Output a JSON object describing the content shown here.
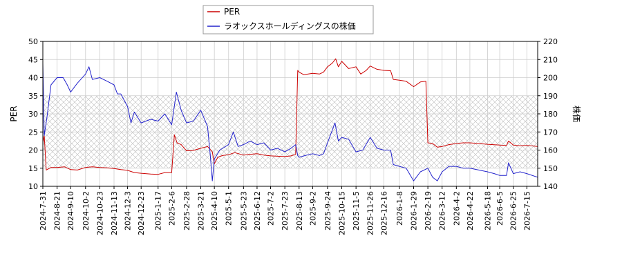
{
  "chart_data": {
    "type": "line",
    "title": "",
    "xlabel": "",
    "ylabel_left": "PER",
    "ylabel_right": "株価",
    "ylim_left": [
      10,
      50
    ],
    "ylim_right": [
      140,
      220
    ],
    "yticks_left": [
      "10",
      "15",
      "20",
      "25",
      "30",
      "35",
      "40",
      "45",
      "50"
    ],
    "yticks_right": [
      "140",
      "150",
      "160",
      "170",
      "180",
      "190",
      "200",
      "210",
      "220"
    ],
    "x_range": [
      "2024-07-31",
      "2026-07-31"
    ],
    "x_tick_labels": [
      "2024-7-31",
      "2024-8-21",
      "2024-9-10",
      "2024-10-2",
      "2024-10-23",
      "2024-11-13",
      "2024-12-3",
      "2024-12-23",
      "2025-1-17",
      "2025-2-6",
      "2025-2-28",
      "2025-3-21",
      "2025-4-10",
      "2025-5-1",
      "2025-5-23",
      "2025-6-12",
      "2025-7-2",
      "2025-7-23",
      "2025-8-13",
      "2025-9-2",
      "2025-9-24",
      "2025-10-15",
      "2025-11-5",
      "2025-11-26",
      "2025-12-16",
      "2026-1-8",
      "2026-1-29",
      "2026-2-19",
      "2026-3-12",
      "2026-4-2",
      "2026-4-22",
      "2026-5-18",
      "2026-6-5",
      "2026-6-25",
      "2026-7-15"
    ],
    "grid": true,
    "legend_position": "top-center",
    "shaded_band_left": [
      15,
      35
    ],
    "series": [
      {
        "name": "PER",
        "axis": "left",
        "color": "#cc0000",
        "points": [
          [
            "2024-07-31",
            22.0
          ],
          [
            "2024-08-02",
            24.0
          ],
          [
            "2024-08-05",
            14.5
          ],
          [
            "2024-08-12",
            15.2
          ],
          [
            "2024-08-21",
            15.2
          ],
          [
            "2024-09-01",
            15.4
          ],
          [
            "2024-09-10",
            14.6
          ],
          [
            "2024-09-20",
            14.5
          ],
          [
            "2024-10-02",
            15.2
          ],
          [
            "2024-10-12",
            15.4
          ],
          [
            "2024-10-23",
            15.2
          ],
          [
            "2024-11-03",
            15.1
          ],
          [
            "2024-11-13",
            14.9
          ],
          [
            "2024-11-23",
            14.6
          ],
          [
            "2024-12-03",
            14.4
          ],
          [
            "2024-12-13",
            13.8
          ],
          [
            "2024-12-23",
            13.6
          ],
          [
            "2025-01-06",
            13.4
          ],
          [
            "2025-01-17",
            13.3
          ],
          [
            "2025-01-27",
            13.8
          ],
          [
            "2025-02-06",
            13.8
          ],
          [
            "2025-02-10",
            24.2
          ],
          [
            "2025-02-14",
            22.0
          ],
          [
            "2025-02-20",
            21.5
          ],
          [
            "2025-02-28",
            19.8
          ],
          [
            "2025-03-10",
            19.9
          ],
          [
            "2025-03-21",
            20.5
          ],
          [
            "2025-03-31",
            21.0
          ],
          [
            "2025-04-07",
            19.5
          ],
          [
            "2025-04-10",
            16.2
          ],
          [
            "2025-04-15",
            18.0
          ],
          [
            "2025-04-22",
            18.5
          ],
          [
            "2025-05-01",
            18.7
          ],
          [
            "2025-05-10",
            19.3
          ],
          [
            "2025-05-23",
            18.6
          ],
          [
            "2025-06-01",
            18.8
          ],
          [
            "2025-06-12",
            19.0
          ],
          [
            "2025-06-22",
            18.6
          ],
          [
            "2025-07-02",
            18.4
          ],
          [
            "2025-07-12",
            18.3
          ],
          [
            "2025-07-23",
            18.2
          ],
          [
            "2025-08-01",
            18.4
          ],
          [
            "2025-08-08",
            18.8
          ],
          [
            "2025-08-11",
            42.0
          ],
          [
            "2025-08-13",
            41.5
          ],
          [
            "2025-08-20",
            40.8
          ],
          [
            "2025-09-02",
            41.2
          ],
          [
            "2025-09-12",
            41.0
          ],
          [
            "2025-09-18",
            41.5
          ],
          [
            "2025-09-24",
            43.0
          ],
          [
            "2025-10-01",
            44.0
          ],
          [
            "2025-10-06",
            45.2
          ],
          [
            "2025-10-10",
            43.0
          ],
          [
            "2025-10-15",
            44.5
          ],
          [
            "2025-10-25",
            42.5
          ],
          [
            "2025-11-05",
            43.0
          ],
          [
            "2025-11-12",
            41.0
          ],
          [
            "2025-11-20",
            42.0
          ],
          [
            "2025-11-26",
            43.2
          ],
          [
            "2025-12-06",
            42.3
          ],
          [
            "2025-12-16",
            42.0
          ],
          [
            "2025-12-26",
            41.9
          ],
          [
            "2025-12-30",
            39.5
          ],
          [
            "2026-01-08",
            39.3
          ],
          [
            "2026-01-18",
            39.0
          ],
          [
            "2026-01-29",
            37.5
          ],
          [
            "2026-02-08",
            38.8
          ],
          [
            "2026-02-16",
            39.0
          ],
          [
            "2026-02-19",
            22.0
          ],
          [
            "2026-02-26",
            21.8
          ],
          [
            "2026-03-05",
            20.8
          ],
          [
            "2026-03-12",
            21.0
          ],
          [
            "2026-03-22",
            21.5
          ],
          [
            "2026-04-02",
            21.8
          ],
          [
            "2026-04-12",
            22.0
          ],
          [
            "2026-04-22",
            22.0
          ],
          [
            "2026-05-05",
            21.8
          ],
          [
            "2026-05-18",
            21.6
          ],
          [
            "2026-06-05",
            21.4
          ],
          [
            "2026-06-15",
            21.3
          ],
          [
            "2026-06-18",
            22.5
          ],
          [
            "2026-06-25",
            21.4
          ],
          [
            "2026-07-05",
            21.2
          ],
          [
            "2026-07-15",
            21.3
          ],
          [
            "2026-07-31",
            21.0
          ]
        ]
      },
      {
        "name": "ラオックスホールディングスの株価",
        "axis": "right",
        "color": "#2222cc",
        "points": [
          [
            "2024-07-31",
            208.0
          ],
          [
            "2024-08-02",
            168.0
          ],
          [
            "2024-08-06",
            178.0
          ],
          [
            "2024-08-12",
            196.0
          ],
          [
            "2024-08-21",
            200.0
          ],
          [
            "2024-08-30",
            200.0
          ],
          [
            "2024-09-05",
            196.0
          ],
          [
            "2024-09-10",
            192.0
          ],
          [
            "2024-09-20",
            197.0
          ],
          [
            "2024-10-02",
            202.0
          ],
          [
            "2024-10-07",
            206.0
          ],
          [
            "2024-10-12",
            199.0
          ],
          [
            "2024-10-23",
            200.0
          ],
          [
            "2024-11-03",
            198.0
          ],
          [
            "2024-11-13",
            196.0
          ],
          [
            "2024-11-18",
            191.0
          ],
          [
            "2024-11-23",
            191.0
          ],
          [
            "2024-12-03",
            184.0
          ],
          [
            "2024-12-08",
            175.0
          ],
          [
            "2024-12-13",
            181.0
          ],
          [
            "2024-12-23",
            175.0
          ],
          [
            "2025-01-06",
            177.0
          ],
          [
            "2025-01-17",
            176.0
          ],
          [
            "2025-01-27",
            180.0
          ],
          [
            "2025-02-06",
            174.0
          ],
          [
            "2025-02-13",
            192.0
          ],
          [
            "2025-02-20",
            182.0
          ],
          [
            "2025-02-28",
            175.0
          ],
          [
            "2025-03-10",
            176.0
          ],
          [
            "2025-03-21",
            182.0
          ],
          [
            "2025-03-31",
            173.0
          ],
          [
            "2025-04-04",
            157.0
          ],
          [
            "2025-04-07",
            143.0
          ],
          [
            "2025-04-10",
            155.0
          ],
          [
            "2025-04-18",
            160.0
          ],
          [
            "2025-05-01",
            163.0
          ],
          [
            "2025-05-08",
            170.0
          ],
          [
            "2025-05-15",
            162.0
          ],
          [
            "2025-05-23",
            163.0
          ],
          [
            "2025-06-02",
            165.0
          ],
          [
            "2025-06-12",
            163.0
          ],
          [
            "2025-06-22",
            164.0
          ],
          [
            "2025-07-02",
            160.0
          ],
          [
            "2025-07-12",
            161.0
          ],
          [
            "2025-07-23",
            159.0
          ],
          [
            "2025-08-01",
            161.0
          ],
          [
            "2025-08-08",
            163.0
          ],
          [
            "2025-08-11",
            157.0
          ],
          [
            "2025-08-13",
            156.0
          ],
          [
            "2025-08-22",
            157.0
          ],
          [
            "2025-09-02",
            158.0
          ],
          [
            "2025-09-12",
            157.0
          ],
          [
            "2025-09-18",
            158.0
          ],
          [
            "2025-09-24",
            164.0
          ],
          [
            "2025-10-01",
            171.0
          ],
          [
            "2025-10-05",
            175.0
          ],
          [
            "2025-10-10",
            165.0
          ],
          [
            "2025-10-15",
            167.0
          ],
          [
            "2025-10-25",
            166.0
          ],
          [
            "2025-11-05",
            159.0
          ],
          [
            "2025-11-15",
            160.0
          ],
          [
            "2025-11-26",
            167.0
          ],
          [
            "2025-12-06",
            161.0
          ],
          [
            "2025-12-16",
            160.0
          ],
          [
            "2025-12-26",
            160.0
          ],
          [
            "2025-12-30",
            152.0
          ],
          [
            "2026-01-08",
            151.0
          ],
          [
            "2026-01-18",
            150.0
          ],
          [
            "2026-01-29",
            143.0
          ],
          [
            "2026-02-08",
            148.0
          ],
          [
            "2026-02-19",
            150.0
          ],
          [
            "2026-02-26",
            145.0
          ],
          [
            "2026-03-05",
            143.0
          ],
          [
            "2026-03-12",
            148.0
          ],
          [
            "2026-03-22",
            151.0
          ],
          [
            "2026-04-02",
            151.0
          ],
          [
            "2026-04-12",
            150.0
          ],
          [
            "2026-04-22",
            150.0
          ],
          [
            "2026-05-05",
            149.0
          ],
          [
            "2026-05-18",
            148.0
          ],
          [
            "2026-05-28",
            147.0
          ],
          [
            "2026-06-05",
            146.0
          ],
          [
            "2026-06-15",
            146.0
          ],
          [
            "2026-06-18",
            153.0
          ],
          [
            "2026-06-25",
            147.0
          ],
          [
            "2026-07-05",
            148.0
          ],
          [
            "2026-07-15",
            147.0
          ],
          [
            "2026-07-31",
            145.0
          ]
        ]
      }
    ]
  }
}
